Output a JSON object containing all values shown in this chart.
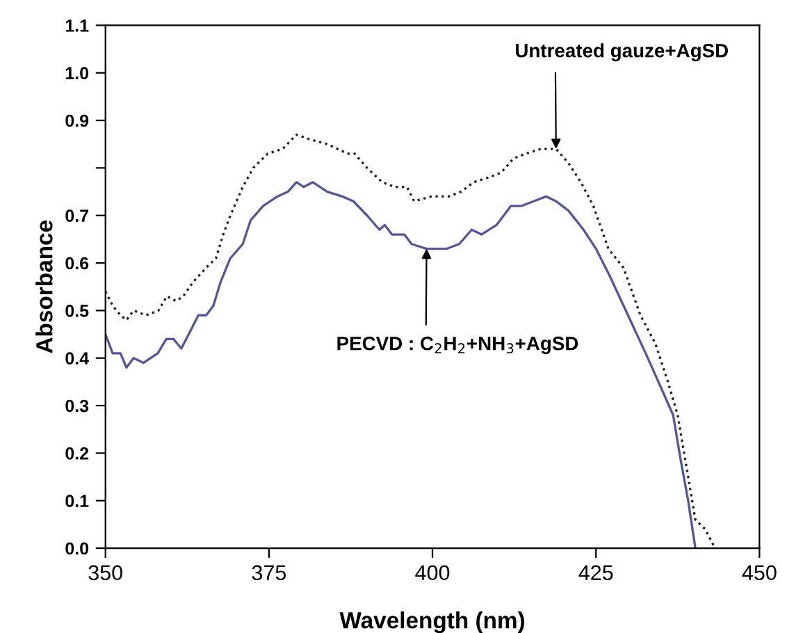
{
  "chart_data": {
    "type": "line",
    "xlabel": "Wavelength (nm)",
    "ylabel": "Absorbance",
    "xlim": [
      350,
      450
    ],
    "ylim": [
      0,
      1.1
    ],
    "xticks": [
      350,
      375,
      400,
      425,
      450
    ],
    "yticks": [
      {
        "value": 0,
        "label": "0.0"
      },
      0.1,
      0.2,
      0.3,
      0.4,
      0.5,
      0.6,
      0.7,
      {
        "value": 0.8,
        "label": null
      },
      0.9,
      {
        "value": 1.0,
        "label": "1.0"
      },
      1.1
    ],
    "grid": false,
    "legend": false,
    "series": [
      {
        "color": "#222222",
        "line_style": "dotted",
        "x": [
          350,
          351.1,
          352.3,
          353.2,
          354.3,
          356.2,
          358.1,
          359.4,
          360.8,
          361.9,
          363.4,
          365.4,
          366.9,
          368.0,
          369.1,
          371.0,
          372.6,
          374.8,
          377.1,
          379.2,
          381.3,
          383.9,
          387.0,
          388.1,
          390.0,
          392.3,
          394.2,
          396.1,
          397.2,
          399.9,
          402.5,
          404.4,
          406.3,
          408.6,
          410.5,
          412.4,
          414.3,
          416.6,
          418.9,
          420.8,
          422.7,
          424.6,
          426.9,
          429.2,
          431.8,
          434.1,
          436.0,
          437.5,
          439.1,
          440.2,
          441.7,
          443.2
        ],
        "values": [
          0.54,
          0.51,
          0.49,
          0.48,
          0.5,
          0.49,
          0.5,
          0.53,
          0.52,
          0.53,
          0.56,
          0.59,
          0.61,
          0.66,
          0.7,
          0.76,
          0.8,
          0.83,
          0.84,
          0.87,
          0.86,
          0.85,
          0.83,
          0.83,
          0.8,
          0.77,
          0.76,
          0.76,
          0.73,
          0.74,
          0.74,
          0.75,
          0.77,
          0.78,
          0.79,
          0.82,
          0.83,
          0.84,
          0.84,
          0.81,
          0.77,
          0.72,
          0.63,
          0.59,
          0.49,
          0.43,
          0.35,
          0.28,
          0.15,
          0.06,
          0.04,
          0
        ]
      },
      {
        "color": "#55559a",
        "line_style": "solid",
        "x": [
          350,
          351.1,
          352.3,
          353.2,
          354.3,
          355.8,
          358.0,
          359.3,
          360.4,
          361.6,
          363.1,
          364.2,
          365.4,
          366.5,
          367.6,
          369.1,
          371.0,
          372.2,
          374.1,
          376.3,
          377.9,
          379.2,
          380.3,
          381.7,
          383.9,
          386.2,
          387.9,
          390.0,
          391.9,
          392.7,
          393.8,
          395.7,
          396.8,
          399.1,
          402.2,
          404.1,
          406.0,
          407.5,
          409.8,
          412.0,
          413.6,
          415.5,
          417.4,
          418.9,
          420.8,
          423.1,
          425.0,
          427.2,
          429.9,
          432.6,
          435.2,
          436.8,
          437.9,
          439.1,
          440.2
        ],
        "values": [
          0.45,
          0.41,
          0.41,
          0.38,
          0.4,
          0.39,
          0.41,
          0.44,
          0.44,
          0.42,
          0.46,
          0.49,
          0.49,
          0.51,
          0.56,
          0.61,
          0.64,
          0.69,
          0.72,
          0.74,
          0.75,
          0.77,
          0.76,
          0.77,
          0.75,
          0.74,
          0.73,
          0.7,
          0.67,
          0.68,
          0.66,
          0.66,
          0.64,
          0.63,
          0.63,
          0.64,
          0.67,
          0.66,
          0.68,
          0.72,
          0.72,
          0.73,
          0.74,
          0.73,
          0.71,
          0.67,
          0.63,
          0.57,
          0.49,
          0.41,
          0.33,
          0.28,
          0.19,
          0.1,
          0
        ]
      }
    ],
    "annotations": [
      {
        "text": "Untreated gauze+AgSD",
        "x": 418.9,
        "y": 0.84
      },
      {
        "text": "PECVD : C$_{2}$H$_{2}$+NH$_{3}$+AgSD",
        "x": 399.1,
        "y": 0.63
      }
    ]
  }
}
